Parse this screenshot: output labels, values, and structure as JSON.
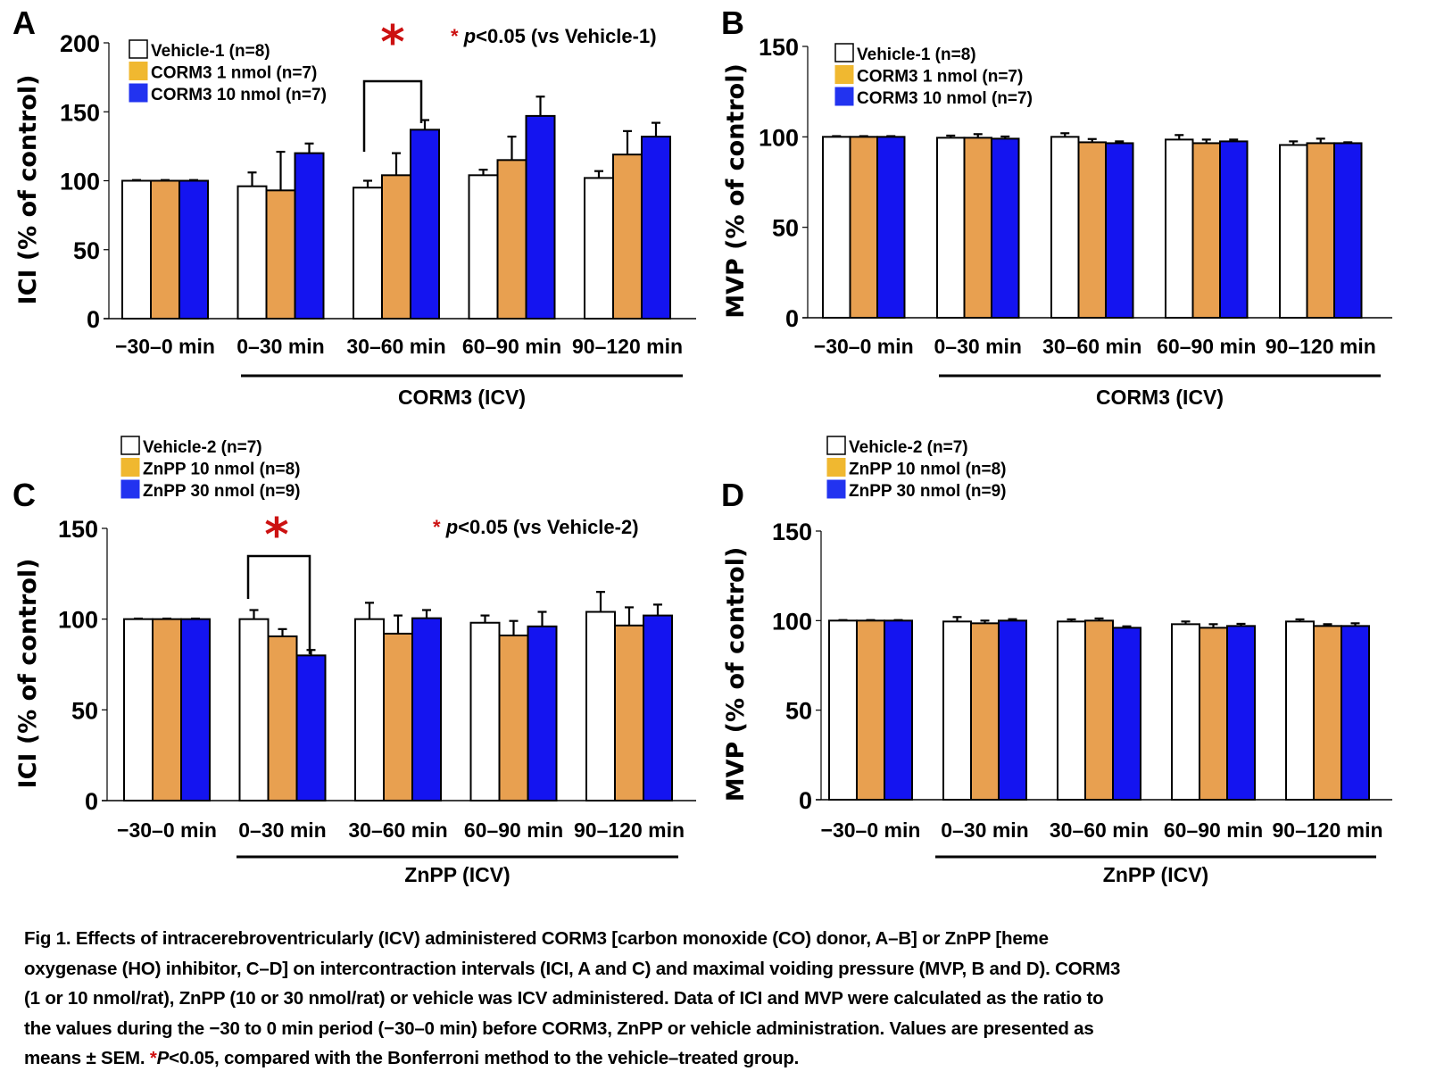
{
  "figure": {
    "colors": {
      "vehicle": "#ffffff",
      "low_dose": "#e8a050",
      "high_dose": "#1414f0",
      "legend_low_dose": "#f0b830",
      "legend_high_dose": "#2233f0",
      "significance": "#cc1111",
      "axis": "#000000"
    }
  },
  "chart_data": [
    {
      "panel": "A",
      "type": "bar",
      "ylabel": "ICI (% of control)",
      "ylim": [
        0,
        200
      ],
      "yticks": [
        0,
        50,
        100,
        150,
        200
      ],
      "categories": [
        "−30–0 min",
        "0–30 min",
        "30–60 min",
        "60–90 min",
        "90–120 min"
      ],
      "treatment_label": "CORM3 (ICV)",
      "significance_note": "p<0.05 (vs Vehicle-1)",
      "significance_mark": {
        "category": "30–60 min",
        "between": [
          "Vehicle-1 (n=8)",
          "CORM3 10 nmol (n=7)"
        ],
        "symbol": "*"
      },
      "series": [
        {
          "name": "Vehicle-1 (n=8)",
          "values": [
            100,
            96,
            95,
            104,
            102
          ],
          "errors": [
            0.5,
            10,
            5,
            4,
            5
          ]
        },
        {
          "name": "CORM3 1 nmol (n=7)",
          "values": [
            100,
            93,
            104,
            115,
            119
          ],
          "errors": [
            0.5,
            28,
            16,
            17,
            17
          ]
        },
        {
          "name": "CORM3 10 nmol (n=7)",
          "values": [
            100,
            120,
            137,
            147,
            132
          ],
          "errors": [
            0.5,
            7,
            7,
            14,
            10
          ]
        }
      ]
    },
    {
      "panel": "B",
      "type": "bar",
      "ylabel": "MVP (% of control)",
      "ylim": [
        0,
        150
      ],
      "yticks": [
        0,
        50,
        100,
        150
      ],
      "categories": [
        "−30–0 min",
        "0–30 min",
        "30–60 min",
        "60–90 min",
        "90–120 min"
      ],
      "treatment_label": "CORM3 (ICV)",
      "series": [
        {
          "name": "Vehicle-1 (n=8)",
          "values": [
            100,
            99.5,
            100,
            98.5,
            95.5
          ],
          "errors": [
            0.4,
            1.2,
            2,
            2.5,
            2
          ]
        },
        {
          "name": "CORM3 1 nmol (n=7)",
          "values": [
            100,
            99.5,
            97,
            96.5,
            96.5
          ],
          "errors": [
            0.4,
            2,
            1.8,
            2,
            2.5
          ]
        },
        {
          "name": "CORM3 10 nmol (n=7)",
          "values": [
            100,
            99,
            96.5,
            97.5,
            96.5
          ],
          "errors": [
            0.4,
            1.2,
            1,
            1,
            0.5
          ]
        }
      ]
    },
    {
      "panel": "C",
      "type": "bar",
      "ylabel": "ICI (% of control)",
      "ylim": [
        0,
        150
      ],
      "yticks": [
        0,
        50,
        100,
        150
      ],
      "categories": [
        "−30–0 min",
        "0–30 min",
        "30–60 min",
        "60–90 min",
        "90–120 min"
      ],
      "treatment_label": "ZnPP (ICV)",
      "significance_note": "p<0.05 (vs Vehicle-2)",
      "significance_mark": {
        "category": "0–30 min",
        "between": [
          "Vehicle-2 (n=7)",
          "ZnPP 30 nmol (n=9)"
        ],
        "symbol": "*"
      },
      "series": [
        {
          "name": "Vehicle-2 (n=7)",
          "values": [
            100,
            100,
            100,
            98,
            104
          ],
          "errors": [
            0.3,
            5,
            9,
            4,
            11
          ]
        },
        {
          "name": "ZnPP 10 nmol (n=8)",
          "values": [
            100,
            90.5,
            92,
            91,
            96.5
          ],
          "errors": [
            0.3,
            4,
            10,
            8,
            10
          ]
        },
        {
          "name": "ZnPP 30 nmol (n=9)",
          "values": [
            100,
            80,
            100.5,
            96,
            102
          ],
          "errors": [
            0.3,
            3,
            4.5,
            8,
            6
          ]
        }
      ]
    },
    {
      "panel": "D",
      "type": "bar",
      "ylabel": "MVP (% of control)",
      "ylim": [
        0,
        150
      ],
      "yticks": [
        0,
        50,
        100,
        150
      ],
      "categories": [
        "−30–0 min",
        "0–30 min",
        "30–60 min",
        "60–90 min",
        "90–120 min"
      ],
      "treatment_label": "ZnPP (ICV)",
      "series": [
        {
          "name": "Vehicle-2 (n=7)",
          "values": [
            100,
            99.5,
            99.5,
            98,
            99.5
          ],
          "errors": [
            0.3,
            2.5,
            1.2,
            1.5,
            1.2
          ]
        },
        {
          "name": "ZnPP 10 nmol (n=8)",
          "values": [
            100,
            98.5,
            100,
            96,
            97
          ],
          "errors": [
            0.3,
            1.5,
            1.2,
            2,
            1
          ]
        },
        {
          "name": "ZnPP 30 nmol (n=9)",
          "values": [
            100,
            100,
            96,
            97,
            97
          ],
          "errors": [
            0.3,
            0.8,
            0.8,
            1.2,
            1.5
          ]
        }
      ]
    }
  ],
  "caption": {
    "lines": [
      "Fig 1. Effects of intracerebroventricularly (ICV) administered CORM3 [carbon monoxide (CO) donor, A–B] or ZnPP [heme",
      "oxygenase (HO) inhibitor, C–D] on intercontraction intervals (ICI, A and C) and maximal voiding pressure (MVP, B and D).  CORM3",
      "(1 or 10 nmol/rat), ZnPP (10 or 30 nmol/rat) or vehicle was ICV administered.  Data of ICI and MVP were calculated as the ratio to",
      "the values during the −30 to 0 min period (−30–0 min) before CORM3, ZnPP or vehicle administration.  Values are presented as"
    ],
    "last_line_prefix": "means ± SEM.  ",
    "last_line_star": "*",
    "last_line_p": "P",
    "last_line_suffix": "<0.05, compared with the Bonferroni method to the vehicle–treated group."
  }
}
